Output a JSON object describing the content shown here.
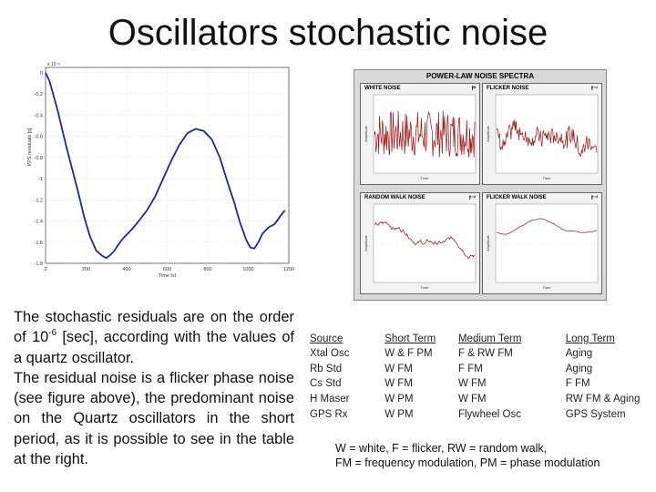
{
  "title": "Oscillators stochastic noise",
  "residual_plot": {
    "ylabel": "PPS residuals [s]",
    "xlabel": "Time [s]",
    "exponent_label": "x 10⁻⁶",
    "ytick_labels": [
      "0",
      "-0.2",
      "-0.4",
      "-0.6",
      "-0.8",
      "-1",
      "-1.2",
      "-1.4",
      "-1.6",
      "-1.8"
    ],
    "xtick_labels": [
      "0",
      "200",
      "400",
      "600",
      "800",
      "1000",
      "1200"
    ],
    "line_color": "#1a2a9a"
  },
  "chart_data": {
    "type": "line",
    "xlabel": "Time [s]",
    "ylabel": "PPS residuals [s]",
    "xlim": [
      0,
      1200
    ],
    "ylim": [
      -1.8,
      0.05
    ],
    "y_scale_note": "x 10^-6",
    "grid": true,
    "x": [
      0,
      20,
      40,
      60,
      80,
      100,
      130,
      160,
      190,
      220,
      250,
      280,
      300,
      320,
      340,
      360,
      380,
      400,
      430,
      460,
      500,
      540,
      580,
      620,
      660,
      700,
      740,
      780,
      820,
      860,
      900,
      930,
      960,
      990,
      1010,
      1030,
      1050,
      1070,
      1100,
      1130,
      1160,
      1180
    ],
    "y": [
      0.0,
      -0.08,
      -0.22,
      -0.36,
      -0.52,
      -0.68,
      -0.9,
      -1.12,
      -1.36,
      -1.55,
      -1.68,
      -1.73,
      -1.75,
      -1.72,
      -1.68,
      -1.62,
      -1.57,
      -1.53,
      -1.47,
      -1.4,
      -1.3,
      -1.17,
      -1.0,
      -0.83,
      -0.68,
      -0.57,
      -0.53,
      -0.55,
      -0.63,
      -0.8,
      -1.05,
      -1.22,
      -1.42,
      -1.58,
      -1.65,
      -1.66,
      -1.6,
      -1.52,
      -1.46,
      -1.43,
      -1.35,
      -1.3
    ]
  },
  "spectra": {
    "title": "POWER-LAW NOISE SPECTRA",
    "panels": [
      {
        "name": "WHITE NOISE",
        "exp": "f⁰",
        "kind": "white"
      },
      {
        "name": "FLICKER NOISE",
        "exp": "f⁻¹",
        "kind": "flicker"
      },
      {
        "name": "RANDOM WALK NOISE",
        "exp": "f⁻²",
        "kind": "random"
      },
      {
        "name": "FLICKER WALK NOISE",
        "exp": "f⁻³",
        "kind": "flickerwalk"
      }
    ],
    "axis_label": "Amplitude",
    "time_label": "Time",
    "line_color": "#a01010"
  },
  "body_text": {
    "p1_before": "The stochastic residuals are on the order of 10",
    "p1_sup": "-6",
    "p1_after": " [sec], according with the values of a quartz oscillator.",
    "p2": "The residual noise is a flicker phase noise (see figure above), the predominant noise on the Quartz oscillators in the short period, as it is possible to see in the table at the right."
  },
  "table": {
    "headers": [
      "Source",
      "Short Term",
      "Medium Term",
      "Long Term"
    ],
    "rows": [
      [
        "Xtal Osc",
        "W & F PM",
        "F & RW FM",
        "Aging"
      ],
      [
        "Rb Std",
        "W FM",
        "F FM",
        "Aging"
      ],
      [
        "Cs Std",
        "W FM",
        "W FM",
        "F FM"
      ],
      [
        "H Maser",
        "W PM",
        "W FM",
        "RW FM & Aging"
      ],
      [
        "GPS Rx",
        "W PM",
        "Flywheel Osc",
        "GPS System"
      ]
    ]
  },
  "note": {
    "line1": "W = white, F = flicker, RW = random walk,",
    "line2": "FM = frequency modulation, PM = phase modulation"
  }
}
